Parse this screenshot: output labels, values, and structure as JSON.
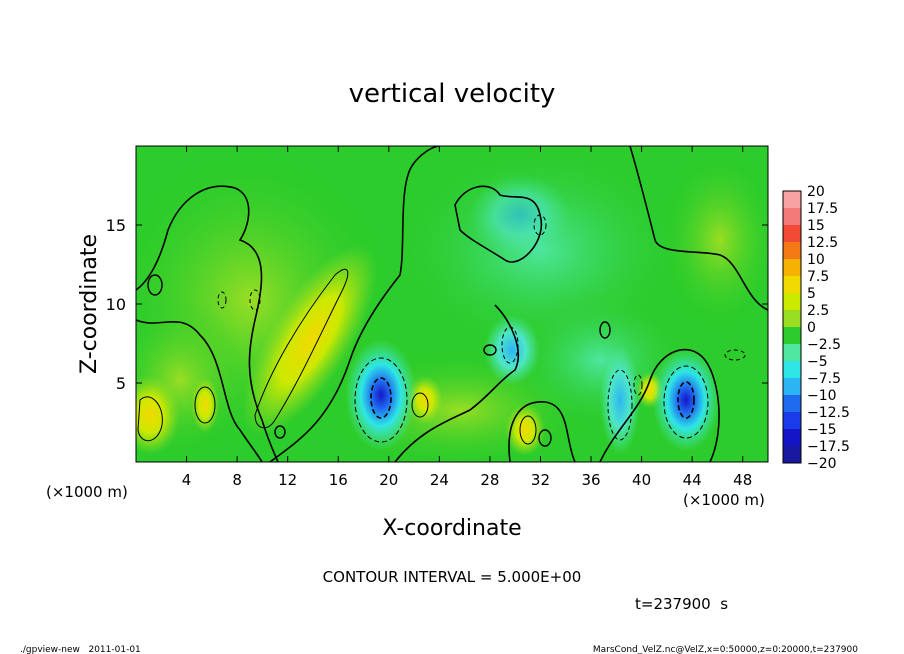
{
  "chart_data": {
    "type": "heatmap",
    "title": "vertical velocity",
    "xlabel": "X-coordinate",
    "ylabel": "Z-coordinate",
    "x_unit_left": "(×1000 m)",
    "x_unit_right": "(×1000 m)",
    "xlim": [
      0,
      50
    ],
    "ylim": [
      0,
      20
    ],
    "x_ticks": [
      4,
      8,
      12,
      16,
      20,
      24,
      28,
      32,
      36,
      40,
      44,
      48
    ],
    "y_ticks": [
      5,
      10,
      15
    ],
    "x_tick_labels": [
      "4",
      "8",
      "12",
      "16",
      "20",
      "24",
      "28",
      "32",
      "36",
      "40",
      "44",
      "48"
    ],
    "y_tick_labels": [
      "5",
      "10",
      "15"
    ],
    "colorbar": {
      "levels": [
        20,
        17.5,
        15,
        12.5,
        10,
        7.5,
        5,
        2.5,
        0,
        -2.5,
        -5,
        -7.5,
        -10,
        -12.5,
        -15,
        -17.5,
        -20
      ],
      "labels": [
        "20",
        "17.5",
        "15",
        "12.5",
        "10",
        "7.5",
        "5",
        "2.5",
        "0",
        "−2.5",
        "−5",
        "−7.5",
        "−10",
        "−12.5",
        "−15",
        "−17.5",
        "−20"
      ],
      "colors": [
        "#f7a3a3",
        "#f47a7a",
        "#f24a35",
        "#f47a15",
        "#f7b100",
        "#f1da00",
        "#cce900",
        "#9ade24",
        "#2bcc2b",
        "#4ee6a0",
        "#2ee6e6",
        "#2bb5f2",
        "#1f6bf0",
        "#1a3ce8",
        "#1515c8",
        "#1818a0",
        "#6b20b8"
      ]
    },
    "features": [
      {
        "x": 19.7,
        "z": 4.3,
        "w": -13,
        "kind": "downdraft"
      },
      {
        "x": 43.5,
        "z": 4.0,
        "w": -13,
        "kind": "downdraft"
      },
      {
        "x": 38.5,
        "z": 3.0,
        "w": -7,
        "kind": "downdraft"
      },
      {
        "x": 30.0,
        "z": 6.0,
        "w": -5,
        "kind": "downdraft"
      },
      {
        "x": 14.5,
        "z": 5.5,
        "w": 7,
        "kind": "updraft"
      },
      {
        "x": 1.5,
        "z": 3.0,
        "w": 6,
        "kind": "updraft"
      },
      {
        "x": 30.0,
        "z": 2.2,
        "w": 5,
        "kind": "updraft"
      },
      {
        "x": 22.5,
        "z": 3.5,
        "w": 5,
        "kind": "updraft"
      }
    ],
    "contour_interval_text": "CONTOUR INTERVAL = 5.000E+00",
    "time_text": "t=237900  s",
    "grid": false,
    "colorbar_placement": "right"
  },
  "footer": {
    "left": "./gpview-new   2011-01-01",
    "right": "MarsCond_VelZ.nc@VelZ,x=0:50000,z=0:20000,t=237900"
  },
  "colors": {
    "background": "#ffffff",
    "field_base": "#2bcc2b"
  }
}
